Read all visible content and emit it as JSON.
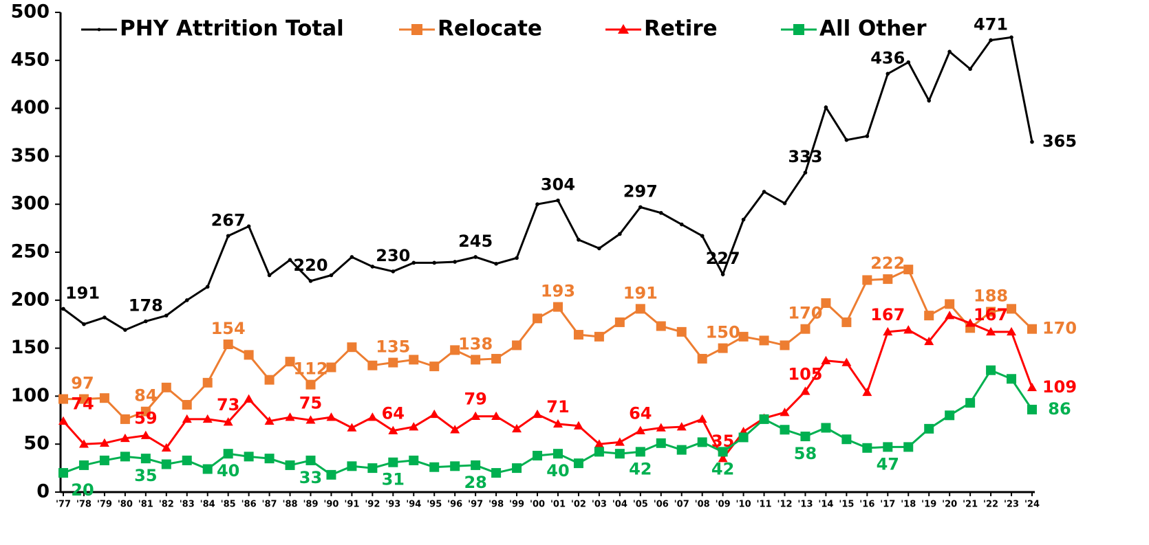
{
  "chart_data": {
    "type": "line",
    "categories": [
      "'77",
      "'78",
      "'79",
      "'80",
      "'81",
      "'82",
      "'83",
      "'84",
      "'85",
      "'86",
      "'87",
      "'88",
      "'89",
      "'90",
      "'91",
      "'92",
      "'93",
      "'94",
      "'95",
      "'96",
      "'97",
      "'98",
      "'99",
      "'00",
      "'01",
      "'02",
      "'03",
      "'04",
      "'05",
      "'06",
      "'07",
      "'08",
      "'09",
      "'10",
      "'11",
      "'12",
      "'13",
      "'14",
      "'15",
      "'16",
      "'17",
      "'18",
      "'19",
      "'20",
      "'21",
      "'22",
      "'23",
      "'24"
    ],
    "series": [
      {
        "name": "PHY Attrition Total",
        "color": "#000000",
        "marker": "circle",
        "values": [
          191,
          175,
          182,
          169,
          178,
          184,
          200,
          214,
          267,
          277,
          226,
          242,
          220,
          226,
          245,
          235,
          230,
          239,
          239,
          240,
          245,
          238,
          244,
          300,
          304,
          263,
          254,
          269,
          297,
          291,
          279,
          267,
          227,
          284,
          313,
          301,
          333,
          401,
          367,
          371,
          436,
          448,
          408,
          459,
          441,
          471,
          474,
          365
        ],
        "value_labels": [
          "191",
          null,
          null,
          null,
          "178",
          null,
          null,
          null,
          "267",
          null,
          null,
          null,
          "220",
          null,
          null,
          null,
          "230",
          null,
          null,
          null,
          "245",
          null,
          null,
          null,
          "304",
          null,
          null,
          null,
          "297",
          null,
          null,
          null,
          "227",
          null,
          null,
          null,
          "333",
          null,
          null,
          null,
          "436",
          null,
          null,
          null,
          null,
          "471",
          null,
          "365"
        ]
      },
      {
        "name": "Relocate",
        "color": "#ed7d31",
        "marker": "square",
        "values": [
          97,
          97,
          98,
          76,
          84,
          109,
          91,
          114,
          154,
          143,
          117,
          136,
          112,
          130,
          151,
          132,
          135,
          138,
          131,
          148,
          138,
          139,
          153,
          181,
          193,
          164,
          162,
          177,
          191,
          173,
          167,
          139,
          150,
          162,
          158,
          153,
          170,
          197,
          177,
          221,
          222,
          232,
          184,
          196,
          171,
          188,
          191,
          170
        ],
        "value_labels": [
          "97",
          null,
          null,
          null,
          "84",
          null,
          null,
          null,
          "154",
          null,
          null,
          null,
          "112",
          null,
          null,
          null,
          "135",
          null,
          null,
          null,
          "138",
          null,
          null,
          null,
          "193",
          null,
          null,
          null,
          "191",
          null,
          null,
          null,
          "150",
          null,
          null,
          null,
          "170",
          null,
          null,
          null,
          "222",
          null,
          null,
          null,
          null,
          "188",
          null,
          "170"
        ]
      },
      {
        "name": "Retire",
        "color": "#ff0000",
        "marker": "triangle",
        "values": [
          74,
          50,
          51,
          56,
          59,
          46,
          76,
          76,
          73,
          97,
          74,
          78,
          75,
          78,
          67,
          78,
          64,
          68,
          81,
          65,
          79,
          79,
          66,
          81,
          71,
          69,
          50,
          52,
          64,
          67,
          68,
          76,
          35,
          63,
          77,
          83,
          105,
          137,
          135,
          104,
          167,
          169,
          157,
          184,
          176,
          167,
          167,
          109
        ],
        "value_labels": [
          "74",
          null,
          null,
          null,
          "59",
          null,
          null,
          null,
          "73",
          null,
          null,
          null,
          "75",
          null,
          null,
          null,
          "64",
          null,
          null,
          null,
          "79",
          null,
          null,
          null,
          "71",
          null,
          null,
          null,
          "64",
          null,
          null,
          null,
          "35",
          null,
          null,
          null,
          "105",
          null,
          null,
          null,
          "167",
          null,
          null,
          null,
          null,
          "167",
          null,
          "109"
        ]
      },
      {
        "name": "All Other",
        "color": "#00b050",
        "marker": "square",
        "values": [
          20,
          28,
          33,
          37,
          35,
          29,
          33,
          24,
          40,
          37,
          35,
          28,
          33,
          18,
          27,
          25,
          31,
          33,
          26,
          27,
          28,
          20,
          25,
          38,
          40,
          30,
          42,
          40,
          42,
          51,
          44,
          52,
          42,
          57,
          76,
          65,
          58,
          67,
          55,
          46,
          47,
          47,
          66,
          80,
          93,
          127,
          118,
          86
        ],
        "value_labels": [
          "20",
          null,
          null,
          null,
          "35",
          null,
          null,
          null,
          "40",
          null,
          null,
          null,
          "33",
          null,
          null,
          null,
          "31",
          null,
          null,
          null,
          "28",
          null,
          null,
          null,
          "40",
          null,
          null,
          null,
          "42",
          null,
          null,
          null,
          "42",
          null,
          null,
          null,
          "58",
          null,
          null,
          null,
          "47",
          null,
          null,
          null,
          null,
          null,
          null,
          "86"
        ]
      }
    ],
    "ylim": [
      0,
      500
    ],
    "yticks": [
      0,
      50,
      100,
      150,
      200,
      250,
      300,
      350,
      400,
      450,
      500
    ],
    "legend": "top"
  }
}
